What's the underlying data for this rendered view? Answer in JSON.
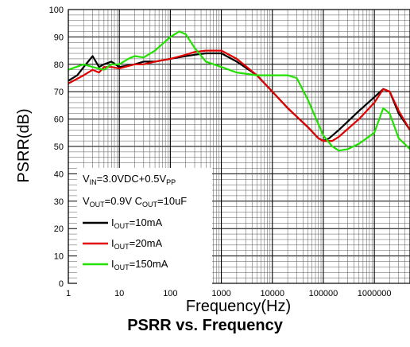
{
  "caption": "PSRR vs. Frequency",
  "chart_data": {
    "type": "line",
    "xlabel": "Frequency(Hz)",
    "ylabel": "PSRR(dB)",
    "x_scale": "log",
    "xlim": [
      1,
      5000000
    ],
    "ylim": [
      0,
      100
    ],
    "x_ticks": [
      "1",
      "10",
      "100",
      "1000",
      "10000",
      "100000",
      "1000000"
    ],
    "y_ticks": [
      "0",
      "10",
      "20",
      "30",
      "40",
      "50",
      "60",
      "70",
      "80",
      "90",
      "100"
    ],
    "grid": true,
    "legend_placement": "bottom-left",
    "conditions": {
      "vin": {
        "main": "V",
        "sub": "IN",
        "rest": "=3.0VDC+0.5V",
        "sub2": "PP"
      },
      "vout": {
        "main": "V",
        "sub": "OUT",
        "mid": "=0.9V C",
        "sub2": "OUT",
        "rest": "=10uF"
      }
    },
    "series": [
      {
        "name": "I_OUT=10mA",
        "legend": {
          "main": "I",
          "sub": "OUT",
          "rest": "=10mA"
        },
        "color": "#000000",
        "x": [
          1,
          1.5,
          2,
          3,
          4,
          5,
          7,
          10,
          20,
          30,
          50,
          100,
          200,
          300,
          500,
          1000,
          2000,
          5000,
          10000,
          20000,
          50000,
          80000,
          100000,
          130000,
          200000,
          500000,
          1000000,
          1500000,
          2000000,
          3000000,
          5000000
        ],
        "y": [
          74,
          76,
          79,
          83,
          79,
          80,
          81,
          79,
          80,
          81,
          81,
          82,
          83,
          83.5,
          84,
          84,
          81,
          76,
          70,
          64,
          57,
          53,
          52,
          53,
          56,
          63,
          68,
          71,
          70,
          62,
          56
        ]
      },
      {
        "name": "I_OUT=20mA",
        "legend": {
          "main": "I",
          "sub": "OUT",
          "rest": "=20mA"
        },
        "color": "#e00000",
        "x": [
          1,
          2,
          3,
          4,
          5,
          7,
          10,
          20,
          30,
          50,
          100,
          200,
          300,
          500,
          1000,
          2000,
          5000,
          10000,
          20000,
          50000,
          80000,
          100000,
          150000,
          200000,
          500000,
          1000000,
          1500000,
          2000000,
          3000000,
          5000000
        ],
        "y": [
          73,
          76,
          78,
          77,
          79,
          79,
          78.5,
          80,
          80,
          81,
          82,
          83.5,
          84.5,
          85,
          85,
          82,
          76,
          70,
          64,
          57,
          53,
          52,
          52,
          53.5,
          60,
          66,
          71,
          70,
          63,
          56
        ]
      },
      {
        "name": "I_OUT=150mA",
        "legend": {
          "main": "I",
          "sub": "OUT",
          "rest": "=150mA"
        },
        "color": "#22e000",
        "x": [
          1,
          2,
          3,
          5,
          7,
          10,
          15,
          20,
          30,
          50,
          100,
          150,
          200,
          300,
          500,
          1000,
          2000,
          5000,
          10000,
          20000,
          30000,
          50000,
          100000,
          150000,
          200000,
          300000,
          500000,
          1000000,
          1500000,
          2000000,
          3000000,
          5000000
        ],
        "y": [
          78,
          80,
          79,
          78,
          80,
          80,
          82,
          83,
          82.5,
          85,
          90,
          92,
          91,
          86,
          81,
          79,
          77,
          76,
          76,
          76,
          75,
          67,
          54,
          50,
          48.5,
          49,
          51,
          55,
          64,
          62,
          53,
          49
        ]
      }
    ]
  }
}
